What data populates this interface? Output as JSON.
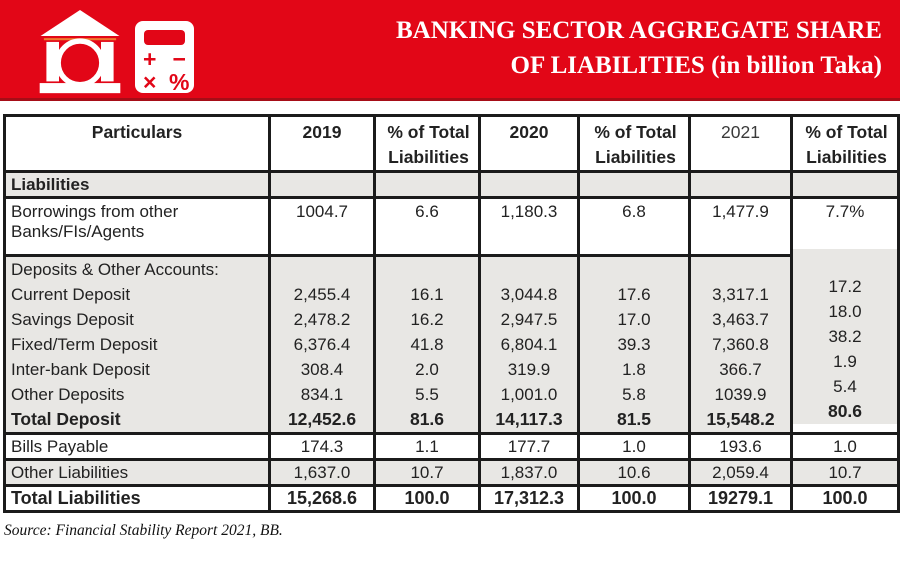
{
  "colors": {
    "banner_red": "#e20617",
    "banner_edge": "#a60d17",
    "row_gray": "#e8e7e4",
    "border_black": "#1b1b1b"
  },
  "banner": {
    "title_line1": "BANKING SECTOR AGGREGATE SHARE",
    "title_line2": "OF LIABILITIES (in billion Taka)",
    "icons": [
      "bank-icon",
      "calculator-icon"
    ],
    "calculator_glyphs": {
      "plus": "+",
      "minus": "−",
      "times": "×",
      "percent": "%"
    }
  },
  "table": {
    "header": {
      "cols": [
        "Particulars",
        "2019",
        "% of Total Liabilities",
        "2020",
        "% of Total Liabilities",
        "2021",
        "% of Total Liabilities"
      ]
    },
    "section_label": "Liabilities",
    "borrowings": {
      "label": "Borrowings from other Banks/FIs/Agents",
      "values": [
        "1004.7",
        "6.6",
        "1,180.3",
        "6.8",
        "1,477.9",
        "7.7%"
      ]
    },
    "deposits": {
      "labels": [
        "Deposits & Other Accounts:",
        "Current Deposit",
        "Savings Deposit",
        "Fixed/Term Deposit",
        "Inter-bank Deposit",
        "Other Deposits",
        "Total Deposit"
      ],
      "y2019": [
        "",
        "2,455.4",
        "2,478.2",
        "6,376.4",
        "308.4",
        "834.1",
        "12,452.6"
      ],
      "pct2019": [
        "",
        "16.1",
        "16.2",
        "41.8",
        "2.0",
        "5.5",
        "81.6"
      ],
      "y2020": [
        "",
        "3,044.8",
        "2,947.5",
        "6,804.1",
        "319.9",
        "1,001.0",
        "14,117.3"
      ],
      "pct2020": [
        "",
        "17.6",
        "17.0",
        "39.3",
        "1.8",
        "5.8",
        "81.5"
      ],
      "y2021": [
        "",
        "3,317.1",
        "3,463.7",
        "7,360.8",
        "366.7",
        "1039.9",
        "15,548.2"
      ],
      "pct2021": [
        "",
        "17.2",
        "18.0",
        "38.2",
        "1.9",
        "5.4",
        "80.6"
      ]
    },
    "bills": {
      "label": "Bills Payable",
      "values": [
        "174.3",
        "1.1",
        "177.7",
        "1.0",
        "193.6",
        "1.0"
      ]
    },
    "other_liabilities": {
      "label": "Other Liabilities",
      "values": [
        "1,637.0",
        "10.7",
        "1,837.0",
        "10.6",
        "2,059.4",
        "10.7"
      ]
    },
    "total_liabilities": {
      "label": "Total Liabilities",
      "values": [
        "15,268.6",
        "100.0",
        "17,312.3",
        "100.0",
        "19279.1",
        "100.0"
      ]
    }
  },
  "source": "Source: Financial Stability Report 2021, BB."
}
